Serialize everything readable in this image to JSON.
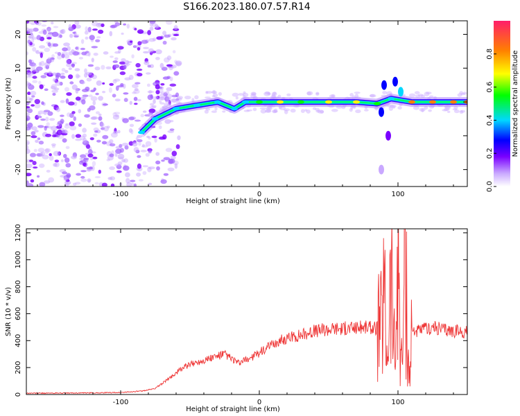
{
  "title": "S166.2023.180.07.57.R14",
  "colors": {
    "snr_line": "#ee3333",
    "scatter_low": "#c9a8ff",
    "scatter_mid": "#7a00ff",
    "scatter_high": "#ff1e6a"
  },
  "chart_data": [
    {
      "type": "heatmap",
      "title": "",
      "xlabel": "Height of straight line (km)",
      "ylabel": "Frequency (Hz)",
      "xlim": [
        -168,
        150
      ],
      "ylim": [
        -25,
        24
      ],
      "x_ticks": [
        -100,
        0,
        100
      ],
      "y_ticks": [
        -20,
        -10,
        0,
        10,
        20
      ],
      "colorbar": {
        "label": "Normalized spectral amplitude",
        "range": [
          0,
          1
        ],
        "ticks": [
          "0.0",
          "0.2",
          "0.4",
          "0.6",
          "0.8"
        ]
      },
      "ridge": [
        {
          "x": -85,
          "y": -9,
          "amp": 0.45
        },
        {
          "x": -75,
          "y": -5,
          "amp": 0.4
        },
        {
          "x": -60,
          "y": -2,
          "amp": 0.45
        },
        {
          "x": -45,
          "y": -1,
          "amp": 0.45
        },
        {
          "x": -30,
          "y": 0,
          "amp": 0.5
        },
        {
          "x": -18,
          "y": -2,
          "amp": 0.4
        },
        {
          "x": -10,
          "y": 0,
          "amp": 0.5
        },
        {
          "x": 0,
          "y": 0,
          "amp": 0.65
        },
        {
          "x": 15,
          "y": 0,
          "amp": 0.8
        },
        {
          "x": 30,
          "y": 0,
          "amp": 0.65
        },
        {
          "x": 50,
          "y": 0,
          "amp": 0.75
        },
        {
          "x": 70,
          "y": 0,
          "amp": 0.75
        },
        {
          "x": 85,
          "y": -0.5,
          "amp": 0.6
        },
        {
          "x": 95,
          "y": 1,
          "amp": 0.45
        },
        {
          "x": 110,
          "y": 0,
          "amp": 0.9
        },
        {
          "x": 125,
          "y": 0,
          "amp": 0.95
        },
        {
          "x": 140,
          "y": 0,
          "amp": 0.85
        },
        {
          "x": 150,
          "y": 0,
          "amp": 0.9
        }
      ]
    },
    {
      "type": "line",
      "title": "",
      "xlabel": "Height of straight line (km)",
      "ylabel": "SNR (10 * v/v)",
      "xlim": [
        -168,
        150
      ],
      "ylim": [
        0,
        1230
      ],
      "x_ticks": [
        -100,
        0,
        100
      ],
      "y_ticks": [
        0,
        200,
        400,
        600,
        800,
        1000,
        1200
      ],
      "series": [
        {
          "x": [
            -168,
            -150,
            -120,
            -100,
            -85,
            -75,
            -65,
            -55,
            -45,
            -35,
            -25,
            -15,
            -5,
            5,
            15,
            25,
            35,
            45,
            55,
            65,
            75,
            85,
            88,
            90,
            92,
            95,
            98,
            100,
            103,
            105,
            108,
            110,
            115,
            125,
            135,
            150
          ],
          "y": [
            10,
            10,
            12,
            15,
            25,
            45,
            120,
            200,
            240,
            270,
            300,
            230,
            280,
            340,
            400,
            430,
            460,
            480,
            490,
            490,
            500,
            490,
            500,
            750,
            300,
            900,
            200,
            1100,
            150,
            1230,
            100,
            480,
            470,
            500,
            480,
            460
          ]
        }
      ]
    }
  ]
}
